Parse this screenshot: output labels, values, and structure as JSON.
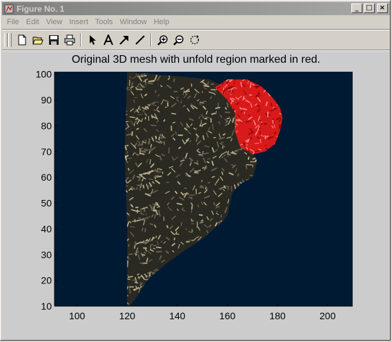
{
  "window": {
    "title": "Figure No. 1",
    "minimize_glyph": "_",
    "maximize_glyph": "□",
    "close_glyph": "×"
  },
  "menu": [
    "File",
    "Edit",
    "View",
    "Insert",
    "Tools",
    "Window",
    "Help"
  ],
  "toolbar": {
    "buttons": [
      {
        "name": "new-figure-icon"
      },
      {
        "name": "open-file-icon"
      },
      {
        "name": "save-icon"
      },
      {
        "name": "print-icon"
      },
      {
        "name": "select-arrow-icon"
      },
      {
        "name": "insert-text-icon"
      },
      {
        "name": "insert-arrow-icon"
      },
      {
        "name": "insert-line-icon"
      },
      {
        "name": "zoom-in-icon"
      },
      {
        "name": "zoom-out-icon"
      },
      {
        "name": "rotate-3d-icon"
      }
    ]
  },
  "colors": {
    "axes_background": "#001a33",
    "mesh": "#2a2a22",
    "mesh_highlight": "#b8ad8a",
    "region": "#d81a1a",
    "region_highlight": "#ff8080"
  },
  "chart_data": {
    "type": "surface",
    "title": "Original 3D mesh with unfold region marked in red.",
    "xlim": [
      91,
      210
    ],
    "ylim": [
      10,
      101
    ],
    "xticks": [
      100,
      120,
      140,
      160,
      180,
      200
    ],
    "yticks": [
      10,
      20,
      30,
      40,
      50,
      60,
      70,
      80,
      90,
      100
    ],
    "xlabel": "",
    "ylabel": "",
    "mesh_outline": [
      [
        120,
        101
      ],
      [
        131,
        100
      ],
      [
        143,
        99
      ],
      [
        153,
        98
      ],
      [
        157,
        96
      ],
      [
        163,
        92
      ],
      [
        167,
        83
      ],
      [
        168,
        74
      ],
      [
        170,
        70
      ],
      [
        172,
        66
      ],
      [
        170,
        60
      ],
      [
        166,
        58
      ],
      [
        162,
        54
      ],
      [
        160,
        45
      ],
      [
        157,
        42
      ],
      [
        150,
        36
      ],
      [
        142,
        31
      ],
      [
        135,
        26
      ],
      [
        128,
        20
      ],
      [
        124,
        14
      ],
      [
        121,
        10
      ],
      [
        120,
        10
      ],
      [
        120,
        40
      ],
      [
        119,
        70
      ],
      [
        120,
        101
      ]
    ],
    "red_region_outline": [
      [
        155,
        95
      ],
      [
        160,
        98
      ],
      [
        168,
        98
      ],
      [
        174,
        95
      ],
      [
        178,
        91
      ],
      [
        181,
        87
      ],
      [
        182,
        83
      ],
      [
        181,
        78
      ],
      [
        179,
        73
      ],
      [
        175,
        70
      ],
      [
        170,
        69
      ],
      [
        165,
        72
      ],
      [
        163,
        78
      ],
      [
        163,
        85
      ],
      [
        160,
        90
      ],
      [
        155,
        95
      ]
    ]
  }
}
